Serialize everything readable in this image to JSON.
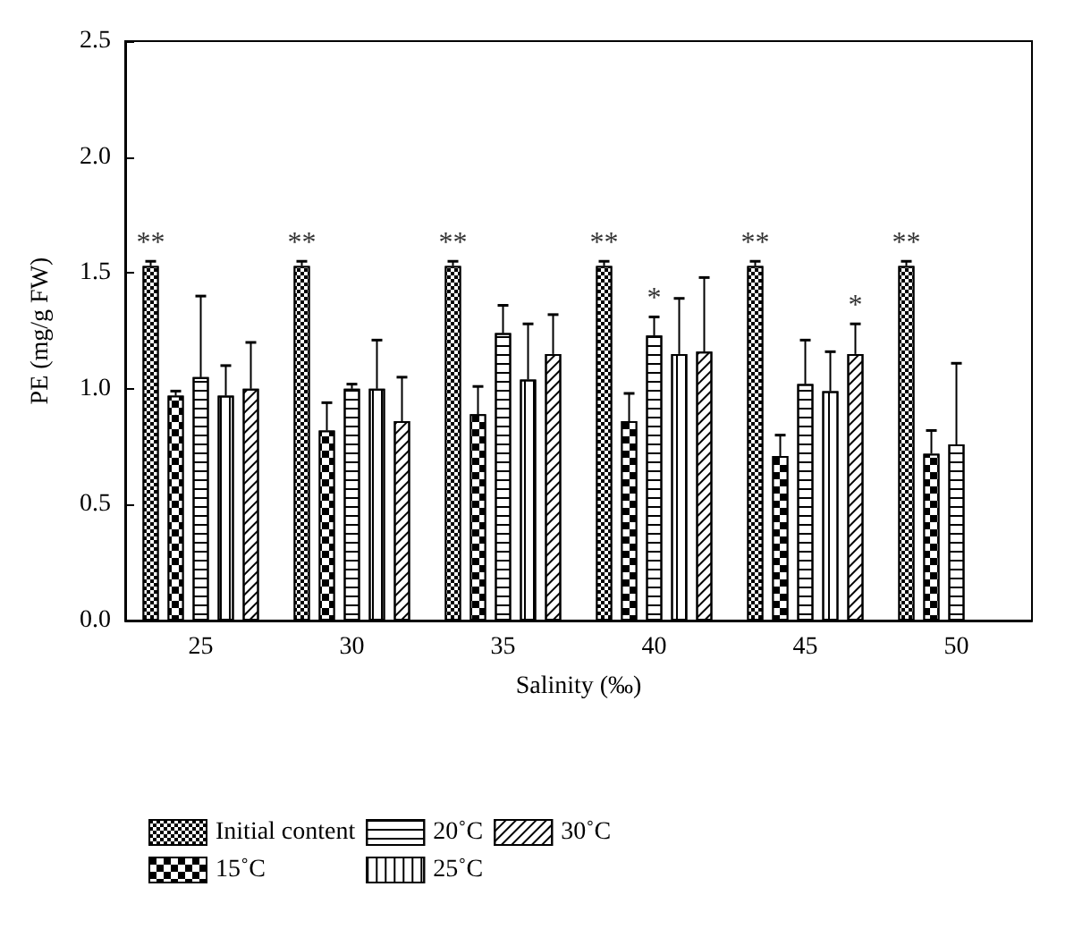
{
  "chart_data": {
    "type": "bar",
    "xlabel": "Salinity (‰)",
    "ylabel": "PE (mg/g FW)",
    "categories": [
      "25",
      "30",
      "35",
      "40",
      "45",
      "50"
    ],
    "series": [
      {
        "name": "Initial content",
        "color": "#000000",
        "values": [
          1.53,
          1.53,
          1.53,
          1.53,
          1.53,
          1.53
        ],
        "value_labels": [
          "**",
          "**",
          "**",
          "**",
          "**",
          "**"
        ],
        "errors": [
          [
            1.53,
            1.55
          ],
          [
            1.53,
            1.55
          ],
          [
            1.53,
            1.55
          ],
          [
            1.53,
            1.55
          ],
          [
            1.53,
            1.55
          ],
          [
            1.53,
            1.55
          ]
        ]
      },
      {
        "name": "15˚C",
        "color": "#000000",
        "values": [
          0.97,
          0.82,
          0.89,
          0.86,
          0.71,
          0.72
        ],
        "errors": [
          [
            0.97,
            0.99
          ],
          [
            0.82,
            0.94
          ],
          [
            0.89,
            1.01
          ],
          [
            0.86,
            0.98
          ],
          [
            0.71,
            0.8
          ],
          [
            0.72,
            0.82
          ]
        ]
      },
      {
        "name": "20˚C",
        "color": "#ffffff",
        "values": [
          1.05,
          1.0,
          1.24,
          1.23,
          1.02,
          0.76
        ],
        "value_labels": [
          null,
          null,
          null,
          "*",
          null,
          null
        ],
        "errors": [
          [
            1.05,
            1.4
          ],
          [
            1.0,
            1.02
          ],
          [
            1.24,
            1.36
          ],
          [
            1.23,
            1.31
          ],
          [
            1.02,
            1.21
          ],
          [
            0.76,
            1.11
          ]
        ]
      },
      {
        "name": "25˚C",
        "color": "#ffffff",
        "values": [
          0.97,
          1.0,
          1.04,
          1.15,
          0.99,
          null
        ],
        "errors": [
          [
            0.97,
            1.1
          ],
          [
            1.0,
            1.21
          ],
          [
            1.04,
            1.28
          ],
          [
            1.15,
            1.39
          ],
          [
            0.99,
            1.16
          ],
          null
        ]
      },
      {
        "name": "30˚C",
        "color": "#ffffff",
        "values": [
          1.0,
          0.86,
          1.15,
          1.16,
          1.15,
          null
        ],
        "value_labels": [
          null,
          null,
          null,
          null,
          "*",
          null
        ],
        "errors": [
          [
            1.0,
            1.2
          ],
          [
            0.86,
            1.05
          ],
          [
            1.15,
            1.32
          ],
          [
            1.16,
            1.48
          ],
          [
            1.15,
            1.28
          ],
          null
        ]
      }
    ],
    "ylim": [
      0,
      2.5
    ],
    "yticks": [
      {
        "value": 0,
        "label": "0.0"
      },
      {
        "value": 0.5,
        "label": "0.5"
      },
      {
        "value": 1,
        "label": "1.0"
      },
      {
        "value": 1.5,
        "label": "1.5"
      },
      {
        "value": 2,
        "label": "2.0"
      },
      {
        "value": 2.5,
        "label": "2.5"
      }
    ],
    "grid": false,
    "legend": "bottom"
  }
}
